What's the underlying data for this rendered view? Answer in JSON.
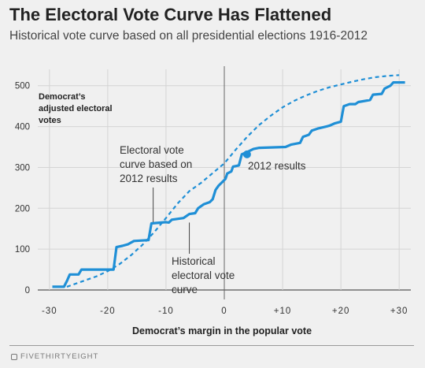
{
  "title": "The Electoral Vote Curve Has Flattened",
  "subtitle": "Historical vote curve based on all presidential elections 1916-2012",
  "footer": {
    "brand": "FIVETHIRTYEIGHT"
  },
  "colors": {
    "accent": "#1f8fd6",
    "grid": "#d4d4d4",
    "text": "#333333",
    "background": "#f0f0f0"
  },
  "chart_data": {
    "type": "line",
    "xlabel": "Democrat’s margin in the popular vote",
    "ylabel": "Democrat’s adjusted electoral votes",
    "xlim": [
      -32,
      32
    ],
    "ylim": [
      0,
      540
    ],
    "x_ticks": [
      -30,
      -20,
      -10,
      0,
      10,
      20,
      30
    ],
    "x_tick_labels": [
      "-30",
      "-20",
      "-10",
      "0",
      "+10",
      "+20",
      "+30"
    ],
    "y_ticks": [
      0,
      100,
      200,
      300,
      400,
      500
    ],
    "y_tick_labels": [
      "0",
      "100",
      "200",
      "300",
      "400",
      "500"
    ],
    "grid": true,
    "reference_line_x": 0,
    "series": [
      {
        "name": "Electoral vote curve based on 2012 results",
        "style": "solid-step",
        "points": [
          [
            -29.5,
            8
          ],
          [
            -27.5,
            8
          ],
          [
            -27,
            22
          ],
          [
            -26.5,
            38
          ],
          [
            -25,
            38
          ],
          [
            -24.5,
            50
          ],
          [
            -19,
            50
          ],
          [
            -18.5,
            105
          ],
          [
            -17.5,
            108
          ],
          [
            -16.5,
            112
          ],
          [
            -15.5,
            120
          ],
          [
            -13,
            122
          ],
          [
            -12.5,
            163
          ],
          [
            -10,
            166
          ],
          [
            -9.5,
            165
          ],
          [
            -9,
            172
          ],
          [
            -7,
            176
          ],
          [
            -6,
            186
          ],
          [
            -5,
            188
          ],
          [
            -4.5,
            200
          ],
          [
            -4,
            205
          ],
          [
            -3.5,
            210
          ],
          [
            -2.5,
            215
          ],
          [
            -2,
            222
          ],
          [
            -1.5,
            245
          ],
          [
            -1,
            255
          ],
          [
            -0.5,
            262
          ],
          [
            0.2,
            272
          ],
          [
            0.5,
            285
          ],
          [
            1.2,
            290
          ],
          [
            1.5,
            302
          ],
          [
            2.5,
            305
          ],
          [
            3,
            332
          ],
          [
            4,
            338
          ],
          [
            5,
            345
          ],
          [
            6,
            348
          ],
          [
            10.5,
            350
          ],
          [
            11.5,
            356
          ],
          [
            13,
            360
          ],
          [
            13.5,
            375
          ],
          [
            14.5,
            380
          ],
          [
            15,
            390
          ],
          [
            16,
            395
          ],
          [
            17.5,
            400
          ],
          [
            18,
            402
          ],
          [
            19,
            408
          ],
          [
            20,
            412
          ],
          [
            20.5,
            450
          ],
          [
            21.5,
            455
          ],
          [
            22.5,
            455
          ],
          [
            23,
            460
          ],
          [
            25,
            465
          ],
          [
            25.5,
            478
          ],
          [
            27,
            480
          ],
          [
            27.5,
            493
          ],
          [
            28.5,
            500
          ],
          [
            29,
            508
          ],
          [
            31,
            508
          ]
        ]
      },
      {
        "name": "Historical electoral vote curve",
        "style": "dashed",
        "points": [
          [
            -27,
            8
          ],
          [
            -25,
            18
          ],
          [
            -22,
            33
          ],
          [
            -20,
            46
          ],
          [
            -18,
            63
          ],
          [
            -16,
            85
          ],
          [
            -14,
            111
          ],
          [
            -12,
            142
          ],
          [
            -10,
            176
          ],
          [
            -8,
            212
          ],
          [
            -6,
            242
          ],
          [
            -4,
            262
          ],
          [
            -2,
            286
          ],
          [
            0,
            310
          ],
          [
            2,
            344
          ],
          [
            4,
            376
          ],
          [
            6,
            404
          ],
          [
            8,
            427
          ],
          [
            10,
            447
          ],
          [
            12,
            463
          ],
          [
            14,
            476
          ],
          [
            16,
            487
          ],
          [
            18,
            496
          ],
          [
            20,
            503
          ],
          [
            22,
            510
          ],
          [
            24,
            516
          ],
          [
            26,
            521
          ],
          [
            28,
            524
          ],
          [
            30,
            526
          ]
        ]
      }
    ],
    "highlight_point": {
      "x": 3.9,
      "y": 332,
      "label": "2012 results"
    },
    "annotations": {
      "ylabel_lines": [
        "Democrat’s",
        "adjusted electoral",
        "votes"
      ],
      "curve_2012_lines": [
        "Electoral vote",
        "curve based on",
        "2012 results"
      ],
      "historical_lines": [
        "Historical",
        "electoral vote",
        "curve"
      ]
    }
  }
}
